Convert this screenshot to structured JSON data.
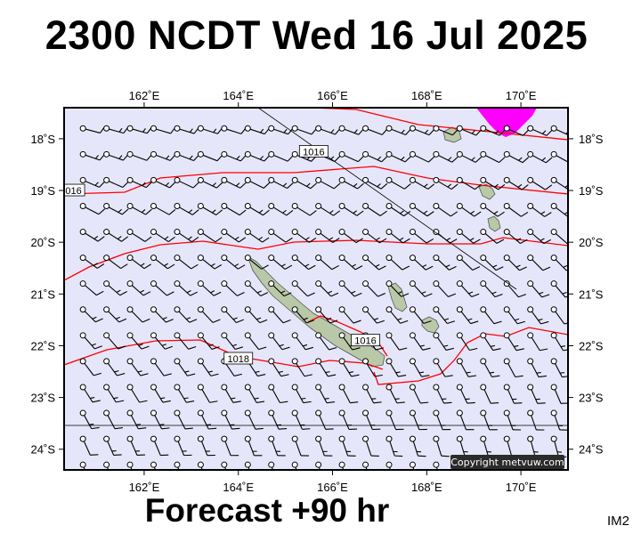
{
  "title": "2300 NCDT Wed 16 Jul 2025",
  "forecast": "Forecast +90 hr",
  "image_code": "IM2",
  "copyright": "Copyright metvuw.com",
  "colors": {
    "sea": "#e6e6fa",
    "land": "#b9c9a8",
    "isobar": "#ff0000",
    "wind_barb": "#000000",
    "rain_highlight": "#ff00ff",
    "border": "#000000"
  },
  "map": {
    "lon_range": [
      160.3,
      171.0
    ],
    "lat_range": [
      -24.4,
      -17.4
    ],
    "top_lon_labels": [
      "162˚E",
      "164˚E",
      "166˚E",
      "168˚E",
      "170˚E"
    ],
    "bottom_lon_labels": [
      "162˚E",
      "164˚E",
      "166˚E",
      "168˚E",
      "170˚E"
    ],
    "left_lat_labels": [
      "18˚S",
      "19˚S",
      "20˚S",
      "21˚S",
      "22˚S",
      "23˚S",
      "24˚S"
    ],
    "right_lat_labels": [
      "18˚S",
      "19˚S",
      "20˚S",
      "21˚S",
      "22˚S",
      "23˚S",
      "24˚S"
    ],
    "isobar_labels": [
      {
        "text": "1016",
        "lon": 165.6,
        "lat": -18.25
      },
      {
        "text": "016",
        "lon": 160.5,
        "lat": -19.0
      },
      {
        "text": "1018",
        "lon": 164.0,
        "lat": -22.25
      },
      {
        "text": "1016",
        "lon": 166.7,
        "lat": -21.9
      }
    ],
    "wind_grid": {
      "lon_start": 160.7,
      "lon_step": 0.5,
      "lon_count": 21,
      "lat_start": -17.8,
      "lat_step": 0.5,
      "lat_count": 14
    }
  }
}
